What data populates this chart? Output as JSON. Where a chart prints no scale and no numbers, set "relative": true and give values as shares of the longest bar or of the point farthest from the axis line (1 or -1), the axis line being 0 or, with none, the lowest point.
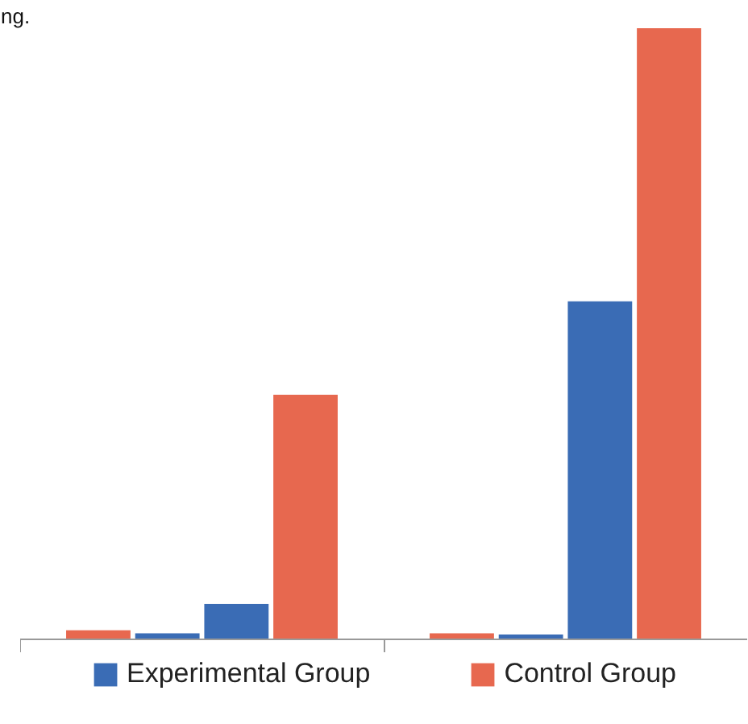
{
  "chart_data": {
    "type": "bar",
    "relative": true,
    "legend": "bottom",
    "categories": [
      null,
      null
    ],
    "series": [
      {
        "color": "#e7684f",
        "values": [
          0.015,
          0.01
        ]
      },
      {
        "name": "Experimental Group",
        "color": "#3a6cb5",
        "values": [
          0.01,
          0.008
        ]
      },
      {
        "color": "#3a6cb5",
        "values": [
          0.058,
          0.553
        ]
      },
      {
        "name": "Control Group",
        "color": "#e7684f",
        "values": [
          0.4,
          1
        ]
      }
    ],
    "annotations": [
      "ng."
    ]
  }
}
